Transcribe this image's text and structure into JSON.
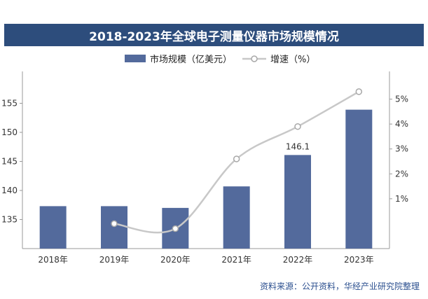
{
  "chart_data": {
    "type": "bar",
    "title": "2018-2023年全球电子测量仪器市场规模情况",
    "categories": [
      "2018年",
      "2019年",
      "2020年",
      "2021年",
      "2022年",
      "2023年"
    ],
    "series": [
      {
        "name": "市场规模（亿美元）",
        "type": "bar",
        "axis": "left",
        "color": "#536a9c",
        "values": [
          137.3,
          137.3,
          137.0,
          140.7,
          146.1,
          153.9
        ]
      },
      {
        "name": "增速（%）",
        "type": "line",
        "axis": "right",
        "color": "#c8c8c8",
        "values": [
          0.0,
          0.0,
          -0.2,
          2.6,
          3.9,
          5.3
        ]
      }
    ],
    "data_labels": [
      {
        "series": 0,
        "index": 4,
        "text": "146.1"
      }
    ],
    "y_left": {
      "ylim": [
        130,
        160
      ],
      "ticks": [
        135,
        140,
        145,
        150,
        155
      ],
      "tick_labels": [
        "135",
        "140",
        "145",
        "150",
        "155"
      ]
    },
    "y_right": {
      "ylim": [
        -1,
        6
      ],
      "ticks": [
        1,
        2,
        3,
        4,
        5
      ],
      "tick_labels": [
        "1%",
        "2%",
        "3%",
        "4%",
        "5%"
      ]
    },
    "legend_position": "top",
    "grid": false
  },
  "source_text": "资料来源：公开资料，华经产业研究院整理"
}
